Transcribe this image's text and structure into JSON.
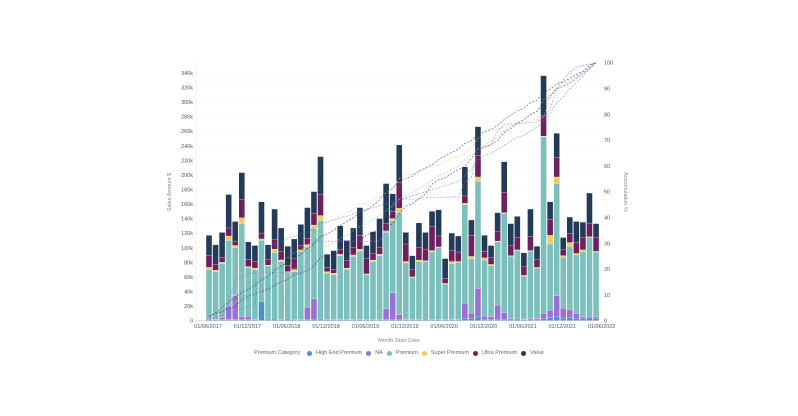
{
  "chart_data": {
    "type": "bar",
    "stacked": true,
    "xlabel": "Month Start Date",
    "ylabel": "Sales Amount $",
    "y2label": "Accumulation %",
    "ylim": [
      0,
      354
    ],
    "y2lim": [
      0,
      100
    ],
    "y_ticks": [
      "0",
      "20k",
      "40k",
      "60k",
      "80k",
      "100k",
      "120k",
      "140k",
      "160k",
      "180k",
      "200k",
      "220k",
      "240k",
      "260k",
      "280k",
      "300k",
      "320k",
      "340k"
    ],
    "y2_ticks": [
      "0",
      "10",
      "20",
      "30",
      "40",
      "50",
      "60",
      "70",
      "80",
      "90",
      "100"
    ],
    "x_ticks": [
      "01/06/2017",
      "01/12/2017",
      "01/06/2018",
      "01/12/2018",
      "01/06/2019",
      "01/12/2019",
      "01/06/2020",
      "01/12/2020",
      "01/06/2021",
      "01/12/2021",
      "01/06/2022"
    ],
    "grid": true,
    "legend_title": "Premium Category:",
    "legend_position": "bottom",
    "units": "thousands of $",
    "categories": [
      "06/2017",
      "07/2017",
      "08/2017",
      "09/2017",
      "10/2017",
      "11/2017",
      "12/2017",
      "01/2018",
      "02/2018",
      "03/2018",
      "04/2018",
      "05/2018",
      "06/2018",
      "07/2018",
      "08/2018",
      "09/2018",
      "10/2018",
      "11/2018",
      "12/2018",
      "01/2019",
      "02/2019",
      "03/2019",
      "04/2019",
      "05/2019",
      "06/2019",
      "07/2019",
      "08/2019",
      "09/2019",
      "10/2019",
      "11/2019",
      "12/2019",
      "01/2020",
      "02/2020",
      "03/2020",
      "04/2020",
      "05/2020",
      "06/2020",
      "07/2020",
      "08/2020",
      "09/2020",
      "10/2020",
      "11/2020",
      "12/2020",
      "01/2021",
      "02/2021",
      "03/2021",
      "04/2021",
      "05/2021",
      "06/2021",
      "07/2021",
      "08/2021",
      "09/2021",
      "10/2021",
      "11/2021",
      "12/2021",
      "01/2022",
      "02/2022",
      "03/2022",
      "04/2022",
      "05/2022"
    ],
    "series": [
      {
        "name": "High End Premium",
        "color": "#4a8fd8",
        "values": [
          1,
          1,
          1,
          1,
          1,
          1,
          1,
          1,
          26,
          2,
          2,
          1,
          2,
          1,
          1,
          1,
          2,
          2,
          1,
          1,
          1,
          1,
          1,
          1,
          1,
          1,
          1,
          1,
          1,
          1,
          1,
          1,
          1,
          1,
          1,
          1,
          1,
          1,
          1,
          3,
          3,
          5,
          2,
          1,
          2,
          2,
          2,
          2,
          1,
          2,
          2,
          3,
          4,
          5,
          3,
          4,
          3,
          3,
          4,
          3
        ]
      },
      {
        "name": "NA",
        "color": "#9a6fd6",
        "values": [
          2,
          1,
          3,
          19,
          33,
          4,
          5,
          1,
          0,
          0,
          0,
          0,
          0,
          0,
          0,
          17,
          28,
          0,
          0,
          0,
          0,
          0,
          0,
          0,
          0,
          0,
          0,
          15,
          37,
          7,
          1,
          0,
          0,
          2,
          0,
          0,
          0,
          1,
          0,
          21,
          7,
          39,
          4,
          4,
          19,
          9,
          1,
          0,
          1,
          1,
          1,
          7,
          10,
          29,
          14,
          11,
          7,
          2,
          2,
          2
        ]
      },
      {
        "name": "Premium",
        "color": "#7bc0bd",
        "values": [
          67,
          65,
          74,
          90,
          66,
          128,
          66,
          68,
          84,
          73,
          91,
          80,
          64,
          66,
          94,
          83,
          96,
          135,
          64,
          62,
          88,
          69,
          87,
          94,
          62,
          80,
          88,
          105,
          99,
          140,
          77,
          58,
          80,
          78,
          93,
          99,
          49,
          76,
          79,
          135,
          75,
          147,
          77,
          70,
          87,
          136,
          85,
          94,
          59,
          92,
          69,
          242,
          91,
          154,
          70,
          87,
          80,
          90,
          108,
          89
        ]
      },
      {
        "name": "Super Premium",
        "color": "#f2cd5c",
        "values": [
          3,
          2,
          2,
          6,
          3,
          8,
          2,
          2,
          2,
          1,
          5,
          2,
          1,
          3,
          2,
          3,
          5,
          7,
          2,
          2,
          2,
          2,
          2,
          3,
          1,
          2,
          2,
          2,
          3,
          6,
          2,
          1,
          2,
          1,
          2,
          1,
          1,
          3,
          1,
          2,
          3,
          6,
          3,
          2,
          1,
          1,
          1,
          1,
          1,
          1,
          1,
          1,
          12,
          9,
          2,
          5,
          2,
          2,
          1,
          1
        ]
      },
      {
        "name": "Ultra Premium",
        "color": "#6e1f5e",
        "values": [
          16,
          8,
          7,
          11,
          6,
          25,
          10,
          9,
          8,
          8,
          13,
          12,
          9,
          15,
          6,
          9,
          16,
          29,
          6,
          5,
          6,
          10,
          10,
          19,
          21,
          9,
          9,
          10,
          10,
          35,
          24,
          10,
          17,
          16,
          33,
          15,
          7,
          15,
          13,
          10,
          29,
          29,
          9,
          9,
          13,
          28,
          14,
          17,
          12,
          19,
          11,
          28,
          22,
          27,
          8,
          12,
          15,
          17,
          18,
          19
        ]
      },
      {
        "name": "Value",
        "color": "#233a59",
        "values": [
          28,
          27,
          34,
          46,
          27,
          37,
          24,
          22,
          43,
          20,
          42,
          32,
          26,
          27,
          29,
          42,
          30,
          52,
          18,
          26,
          33,
          28,
          27,
          38,
          18,
          30,
          40,
          55,
          24,
          52,
          16,
          19,
          34,
          23,
          21,
          36,
          27,
          24,
          22,
          40,
          21,
          40,
          22,
          17,
          26,
          42,
          30,
          29,
          19,
          38,
          18,
          55,
          24,
          33,
          17,
          23,
          29,
          21,
          42,
          19
        ]
      }
    ]
  }
}
